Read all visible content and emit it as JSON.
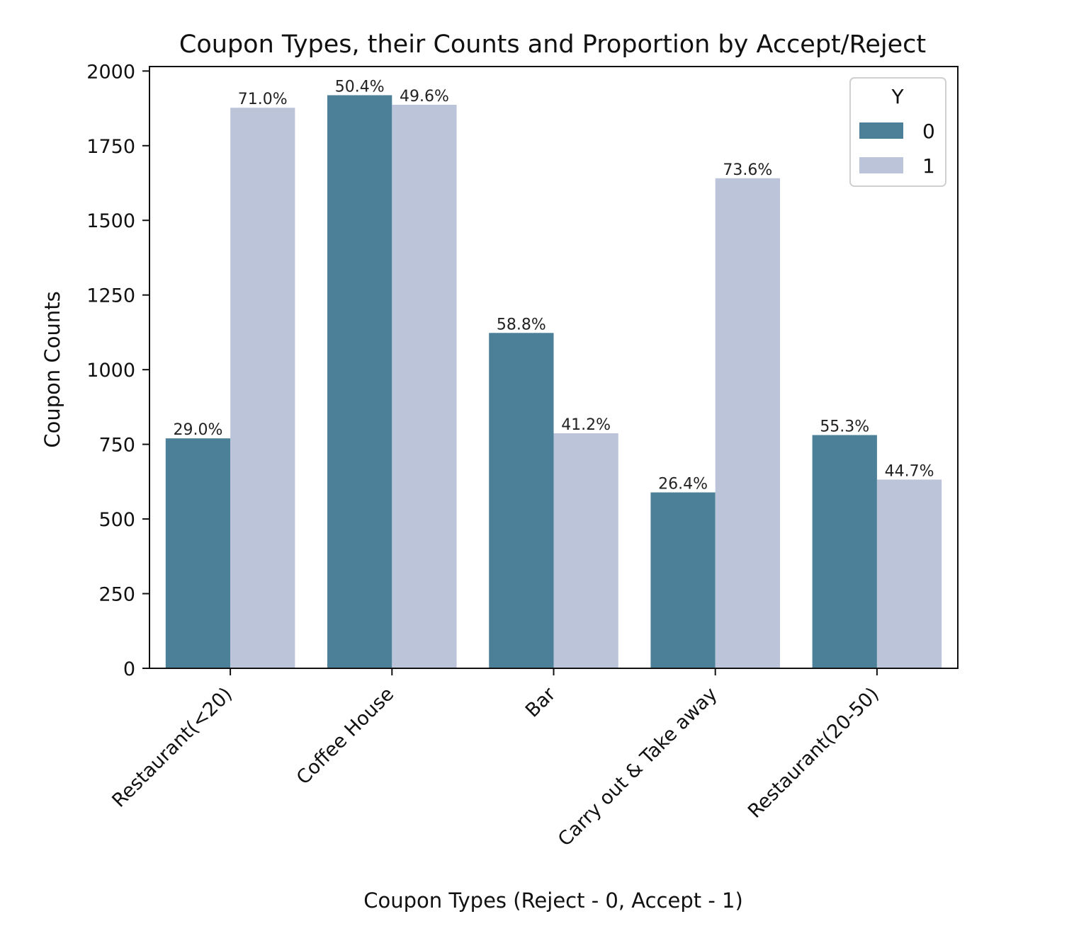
{
  "chart_data": {
    "type": "bar",
    "title": "Coupon Types, their Counts and Proportion by Accept/Reject",
    "xlabel": "Coupon Types (Reject - 0, Accept - 1)",
    "ylabel": "Coupon Counts",
    "categories": [
      "Restaurant(<20)",
      "Coffee House",
      "Bar",
      "Carry out & Take away",
      "Restaurant(20-50)"
    ],
    "series": [
      {
        "name": "0",
        "color": "#4b8098",
        "values": [
          770,
          1919,
          1123,
          589,
          781
        ],
        "labels": [
          "29.0%",
          "50.4%",
          "58.8%",
          "26.4%",
          "55.3%"
        ]
      },
      {
        "name": "1",
        "color": "#bbc4d9",
        "values": [
          1877,
          1887,
          787,
          1641,
          632
        ],
        "labels": [
          "71.0%",
          "49.6%",
          "41.2%",
          "73.6%",
          "44.7%"
        ]
      }
    ],
    "yticks": [
      0,
      250,
      500,
      750,
      1000,
      1250,
      1500,
      1750,
      2000
    ],
    "ylim": [
      0,
      2015
    ],
    "legend": {
      "title": "Y",
      "position": "upper right"
    },
    "grid": false
  }
}
